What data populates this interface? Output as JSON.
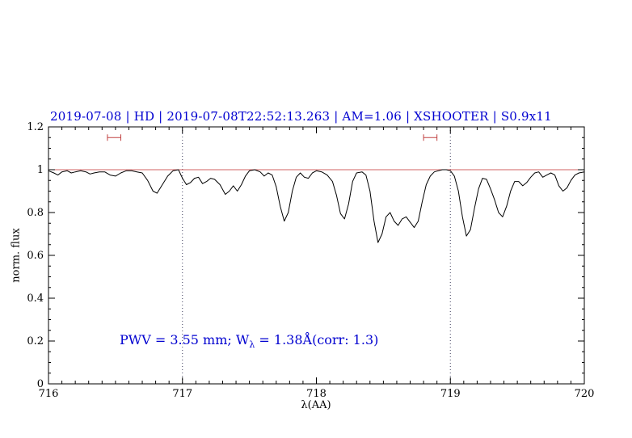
{
  "title": "2019-07-08 | HD | 2019-07-08T22:52:13.263 | AM=1.06 | XSHOOTER | S0.9x11",
  "axes": {
    "ylabel": "norm. flux",
    "xlabel": "λ(AA)"
  },
  "annotation": {
    "part1": "PWV = 3.55 mm; W",
    "sub": "λ",
    "part2": " = 1.38Å(corr: 1.3)"
  },
  "colors": {
    "title": "#0000d0",
    "annotation": "#0000d0",
    "spectrum": "#000000",
    "continuum": "#d06060",
    "marker": "#c04040",
    "gridline": "#404060",
    "frame": "#000000"
  },
  "chart_data": {
    "type": "line",
    "title": "2019-07-08 | HD | 2019-07-08T22:52:13.263 | AM=1.06 | XSHOOTER | S0.9x11",
    "xlabel": "λ(AA)",
    "ylabel": "norm. flux",
    "annotation": "PWV = 3.55 mm; W_λ = 1.38Å(corr: 1.3)",
    "xlim": [
      716,
      720
    ],
    "ylim": [
      0,
      1.2
    ],
    "xticks": [
      716,
      717,
      718,
      719,
      720
    ],
    "xtick_labels": [
      "716",
      "717",
      "718",
      "719",
      "720"
    ],
    "yticks": [
      0,
      0.2,
      0.4,
      0.6,
      0.8,
      1,
      1.2
    ],
    "ytick_labels": [
      "0",
      "0.2",
      "0.4",
      "0.6",
      "0.8",
      "1",
      "1.2"
    ],
    "dotted_vlines": [
      717,
      719
    ],
    "continuum_y": 1.0,
    "range_markers": [
      {
        "x_center": 716.49,
        "half_width": 0.05,
        "y": 1.15
      },
      {
        "x_center": 718.85,
        "half_width": 0.05,
        "y": 1.15
      }
    ],
    "grid": false,
    "legend": "none",
    "series": [
      {
        "name": "spectrum",
        "points": [
          [
            716.0,
            0.995
          ],
          [
            716.04,
            0.985
          ],
          [
            716.07,
            0.975
          ],
          [
            716.1,
            0.99
          ],
          [
            716.14,
            0.995
          ],
          [
            716.17,
            0.985
          ],
          [
            716.2,
            0.99
          ],
          [
            716.24,
            0.995
          ],
          [
            716.28,
            0.99
          ],
          [
            716.31,
            0.98
          ],
          [
            716.34,
            0.985
          ],
          [
            716.38,
            0.99
          ],
          [
            716.42,
            0.99
          ],
          [
            716.46,
            0.975
          ],
          [
            716.5,
            0.97
          ],
          [
            716.54,
            0.985
          ],
          [
            716.58,
            0.995
          ],
          [
            716.62,
            0.995
          ],
          [
            716.66,
            0.99
          ],
          [
            716.7,
            0.985
          ],
          [
            716.74,
            0.95
          ],
          [
            716.78,
            0.9
          ],
          [
            716.81,
            0.89
          ],
          [
            716.85,
            0.93
          ],
          [
            716.89,
            0.97
          ],
          [
            716.93,
            0.995
          ],
          [
            716.97,
            1.0
          ],
          [
            717.0,
            0.96
          ],
          [
            717.03,
            0.93
          ],
          [
            717.06,
            0.94
          ],
          [
            717.09,
            0.96
          ],
          [
            717.12,
            0.965
          ],
          [
            717.15,
            0.935
          ],
          [
            717.18,
            0.945
          ],
          [
            717.21,
            0.96
          ],
          [
            717.24,
            0.955
          ],
          [
            717.28,
            0.93
          ],
          [
            717.32,
            0.885
          ],
          [
            717.35,
            0.9
          ],
          [
            717.38,
            0.925
          ],
          [
            717.41,
            0.9
          ],
          [
            717.44,
            0.93
          ],
          [
            717.47,
            0.97
          ],
          [
            717.5,
            0.995
          ],
          [
            717.54,
            1.0
          ],
          [
            717.58,
            0.99
          ],
          [
            717.61,
            0.97
          ],
          [
            717.64,
            0.985
          ],
          [
            717.67,
            0.975
          ],
          [
            717.7,
            0.92
          ],
          [
            717.73,
            0.83
          ],
          [
            717.76,
            0.76
          ],
          [
            717.79,
            0.8
          ],
          [
            717.82,
            0.9
          ],
          [
            717.85,
            0.965
          ],
          [
            717.88,
            0.985
          ],
          [
            717.91,
            0.965
          ],
          [
            717.94,
            0.96
          ],
          [
            717.97,
            0.985
          ],
          [
            718.0,
            0.995
          ],
          [
            718.04,
            0.99
          ],
          [
            718.08,
            0.975
          ],
          [
            718.12,
            0.945
          ],
          [
            718.15,
            0.88
          ],
          [
            718.18,
            0.795
          ],
          [
            718.21,
            0.77
          ],
          [
            718.24,
            0.84
          ],
          [
            718.27,
            0.945
          ],
          [
            718.3,
            0.985
          ],
          [
            718.34,
            0.99
          ],
          [
            718.37,
            0.975
          ],
          [
            718.4,
            0.9
          ],
          [
            718.43,
            0.76
          ],
          [
            718.46,
            0.66
          ],
          [
            718.49,
            0.7
          ],
          [
            718.52,
            0.78
          ],
          [
            718.55,
            0.8
          ],
          [
            718.58,
            0.76
          ],
          [
            718.61,
            0.74
          ],
          [
            718.64,
            0.77
          ],
          [
            718.67,
            0.78
          ],
          [
            718.7,
            0.755
          ],
          [
            718.73,
            0.73
          ],
          [
            718.76,
            0.76
          ],
          [
            718.79,
            0.85
          ],
          [
            718.82,
            0.93
          ],
          [
            718.85,
            0.97
          ],
          [
            718.88,
            0.99
          ],
          [
            718.91,
            0.995
          ],
          [
            718.94,
            1.0
          ],
          [
            718.97,
            1.0
          ],
          [
            719.0,
            0.995
          ],
          [
            719.03,
            0.97
          ],
          [
            719.06,
            0.9
          ],
          [
            719.09,
            0.78
          ],
          [
            719.12,
            0.69
          ],
          [
            719.15,
            0.72
          ],
          [
            719.18,
            0.82
          ],
          [
            719.21,
            0.91
          ],
          [
            719.24,
            0.96
          ],
          [
            719.27,
            0.955
          ],
          [
            719.3,
            0.91
          ],
          [
            719.33,
            0.86
          ],
          [
            719.36,
            0.8
          ],
          [
            719.39,
            0.78
          ],
          [
            719.42,
            0.83
          ],
          [
            719.45,
            0.9
          ],
          [
            719.48,
            0.945
          ],
          [
            719.51,
            0.945
          ],
          [
            719.54,
            0.925
          ],
          [
            719.57,
            0.94
          ],
          [
            719.6,
            0.965
          ],
          [
            719.63,
            0.985
          ],
          [
            719.66,
            0.99
          ],
          [
            719.69,
            0.965
          ],
          [
            719.72,
            0.975
          ],
          [
            719.75,
            0.985
          ],
          [
            719.78,
            0.975
          ],
          [
            719.81,
            0.925
          ],
          [
            719.84,
            0.9
          ],
          [
            719.87,
            0.915
          ],
          [
            719.9,
            0.95
          ],
          [
            719.93,
            0.975
          ],
          [
            719.96,
            0.985
          ],
          [
            720.0,
            0.99
          ]
        ]
      }
    ]
  }
}
